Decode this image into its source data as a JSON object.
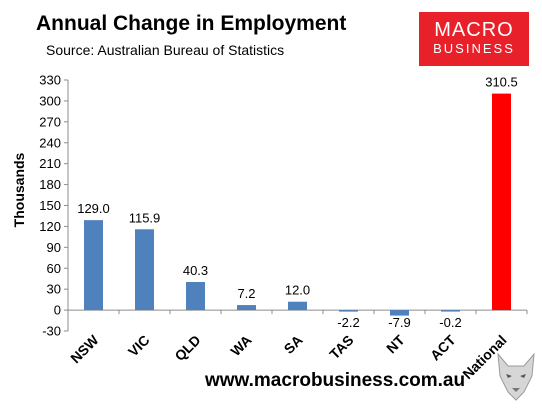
{
  "header": {
    "title": "Annual Change in Employment",
    "subtitle": "Source: Australian Bureau of Statistics"
  },
  "logo": {
    "line1": "MACRO",
    "line2": "BUSINESS"
  },
  "footer": {
    "website": "www.macrobusiness.com.au"
  },
  "chart_data": {
    "type": "bar",
    "ylabel": "Thousands",
    "xlabel": "",
    "ylim": [
      -30,
      330
    ],
    "yticks": [
      -30,
      0,
      30,
      60,
      90,
      120,
      150,
      180,
      210,
      240,
      270,
      300,
      330
    ],
    "categories": [
      "NSW",
      "VIC",
      "QLD",
      "WA",
      "SA",
      "TAS",
      "NT",
      "ACT",
      "National"
    ],
    "values": [
      129.0,
      115.9,
      40.3,
      7.2,
      12.0,
      -2.2,
      -7.9,
      -0.2,
      310.5
    ],
    "data_labels": [
      "129.0",
      "115.9",
      "40.3",
      "7.2",
      "12.0",
      "-2.2",
      "-7.9",
      "-0.2",
      "310.5"
    ],
    "grid": false,
    "colors": {
      "bar": "#4f81bd",
      "highlight": "#ff0000",
      "axis": "#8c8c8c"
    },
    "highlight_category": "National"
  }
}
